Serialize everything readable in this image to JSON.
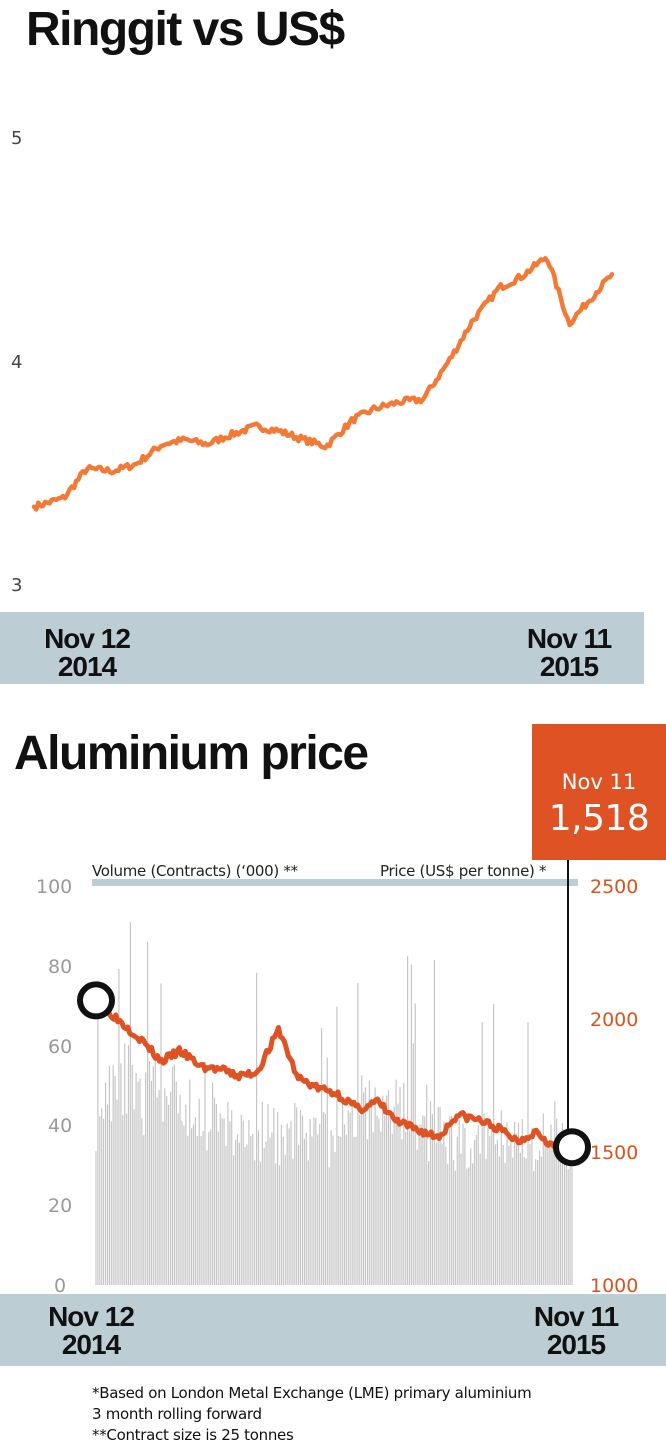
{
  "chart_data": [
    {
      "type": "line",
      "title": "Ringgit vs US$",
      "ylim": [
        3,
        5
      ],
      "yticks": [
        "5",
        "4",
        "3"
      ],
      "x_range_labels": [
        {
          "month_day": "Nov 12",
          "year": "2014"
        },
        {
          "month_day": "Nov 11",
          "year": "2015"
        }
      ],
      "series": [
        {
          "color": "#f27a36",
          "x": [
            "2014-11-12",
            "2014-12-01",
            "2014-12-15",
            "2015-01-01",
            "2015-01-15",
            "2015-02-01",
            "2015-02-15",
            "2015-03-01",
            "2015-03-15",
            "2015-04-01",
            "2015-04-15",
            "2015-05-01",
            "2015-05-15",
            "2015-06-01",
            "2015-06-15",
            "2015-07-01",
            "2015-07-15",
            "2015-08-01",
            "2015-08-15",
            "2015-09-01",
            "2015-09-15",
            "2015-10-01",
            "2015-10-15",
            "2015-11-01",
            "2015-11-11"
          ],
          "values": [
            3.35,
            3.39,
            3.52,
            3.51,
            3.54,
            3.63,
            3.65,
            3.63,
            3.67,
            3.71,
            3.69,
            3.65,
            3.62,
            3.74,
            3.79,
            3.82,
            3.83,
            4.01,
            4.18,
            4.33,
            4.38,
            4.47,
            4.17,
            4.31,
            4.39
          ]
        }
      ]
    },
    {
      "type": "bar+line",
      "title": "Aluminium price",
      "x_range_labels": [
        {
          "month_day": "Nov 12",
          "year": "2014"
        },
        {
          "month_day": "Nov 11",
          "year": "2015"
        }
      ],
      "volume_axis": {
        "label": "Volume (Contracts) (‘000) **",
        "range": [
          0,
          100
        ],
        "ticks": [
          "100",
          "80",
          "60",
          "40",
          "20",
          "0"
        ]
      },
      "price_axis": {
        "label": "Price (US$ per tonne) *",
        "range": [
          1000,
          2500
        ],
        "ticks": [
          "2500",
          "2000",
          "1500",
          "1000"
        ]
      },
      "callout": {
        "date": "Nov 11",
        "value": "1,518"
      },
      "volume_series": {
        "color": "#c6c6c6",
        "x": [
          "2014-11-12",
          "2014-12-01",
          "2014-12-15",
          "2015-01-01",
          "2015-01-15",
          "2015-02-01",
          "2015-02-15",
          "2015-03-01",
          "2015-03-15",
          "2015-04-01",
          "2015-04-15",
          "2015-05-01",
          "2015-05-15",
          "2015-06-01",
          "2015-06-15",
          "2015-07-01",
          "2015-07-15",
          "2015-08-01",
          "2015-08-15",
          "2015-09-01",
          "2015-09-15",
          "2015-10-01",
          "2015-10-15",
          "2015-11-01",
          "2015-11-11"
        ],
        "values": [
          43,
          55,
          47,
          50,
          46,
          42,
          44,
          38,
          40,
          37,
          41,
          36,
          39,
          46,
          42,
          47,
          38,
          41,
          35,
          37,
          39,
          36,
          34,
          44,
          33
        ]
      },
      "price_series": {
        "color": "#de5223",
        "x": [
          "2014-11-12",
          "2014-12-01",
          "2014-12-15",
          "2015-01-01",
          "2015-01-15",
          "2015-02-01",
          "2015-02-15",
          "2015-03-01",
          "2015-03-15",
          "2015-04-01",
          "2015-04-15",
          "2015-05-01",
          "2015-05-15",
          "2015-06-01",
          "2015-06-15",
          "2015-07-01",
          "2015-07-15",
          "2015-08-01",
          "2015-08-15",
          "2015-09-01",
          "2015-09-15",
          "2015-10-01",
          "2015-10-15",
          "2015-11-01",
          "2015-11-11"
        ],
        "values": [
          2070,
          1990,
          1930,
          1840,
          1880,
          1820,
          1810,
          1785,
          1800,
          1960,
          1780,
          1740,
          1720,
          1660,
          1690,
          1610,
          1585,
          1555,
          1640,
          1620,
          1590,
          1540,
          1580,
          1500,
          1518
        ]
      }
    }
  ],
  "notes": [
    "*Based on London Metal Exchange (LME) primary aluminium",
    "3 month rolling forward",
    "**Contract size is 25 tonnes"
  ]
}
